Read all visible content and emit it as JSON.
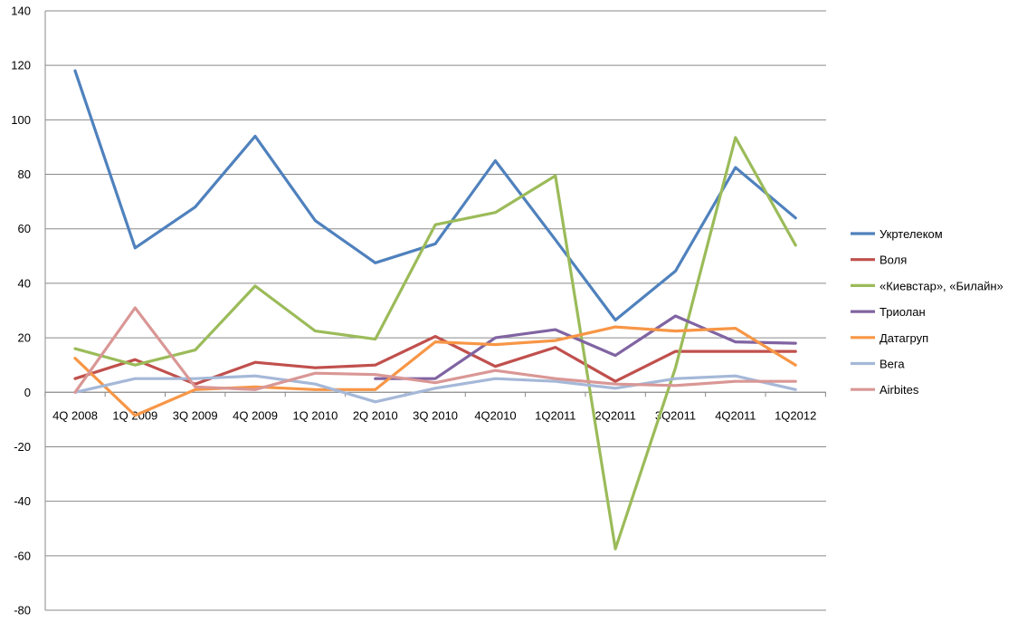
{
  "chart_data": {
    "type": "line",
    "title": "",
    "xlabel": "",
    "ylabel": "",
    "ylim": [
      -80,
      140
    ],
    "ytick_step": 20,
    "grid": true,
    "legend_position": "right",
    "categories": [
      "4Q 2008",
      "1Q 2009",
      "3Q 2009",
      "4Q 2009",
      "1Q 2010",
      "2Q 2010",
      "3Q 2010",
      "4Q2010",
      "1Q2011",
      "2Q2011",
      "3Q2011",
      "4Q2011",
      "1Q2012"
    ],
    "series": [
      {
        "name": "Укртелеком",
        "color": "#4f81bd",
        "values": [
          118,
          53,
          68,
          94,
          63,
          47.5,
          54.5,
          85,
          56,
          26.5,
          44.5,
          82.5,
          64
        ]
      },
      {
        "name": "Воля",
        "color": "#c0504d",
        "values": [
          5,
          12,
          3,
          11,
          9,
          10,
          20.5,
          9.5,
          16.5,
          4,
          15,
          15,
          15
        ]
      },
      {
        "name": "«Киевстар», «Билайн»",
        "color": "#9bbb59",
        "values": [
          16,
          10,
          15.5,
          39,
          22.5,
          19.5,
          61.5,
          66,
          79.5,
          -57.5,
          9,
          93.5,
          54
        ]
      },
      {
        "name": "Триолан",
        "color": "#8064a2",
        "values": [
          null,
          null,
          null,
          null,
          null,
          5,
          5,
          20,
          23,
          13.5,
          28,
          18.5,
          18
        ]
      },
      {
        "name": "Датагруп",
        "color": "#f79646",
        "values": [
          12.5,
          -8.5,
          1,
          2,
          1,
          1,
          18.5,
          17.5,
          19,
          24,
          22.5,
          23.5,
          10
        ]
      },
      {
        "name": "Вега",
        "color": "#a5b8d8",
        "values": [
          0,
          5,
          5,
          6,
          3,
          -3.5,
          1.5,
          5,
          4,
          1.5,
          5,
          6,
          1
        ]
      },
      {
        "name": "Airbites",
        "color": "#d99795",
        "values": [
          0,
          31,
          2,
          1,
          7,
          6.5,
          3.5,
          8,
          5,
          3,
          2.5,
          4,
          4
        ]
      }
    ]
  }
}
